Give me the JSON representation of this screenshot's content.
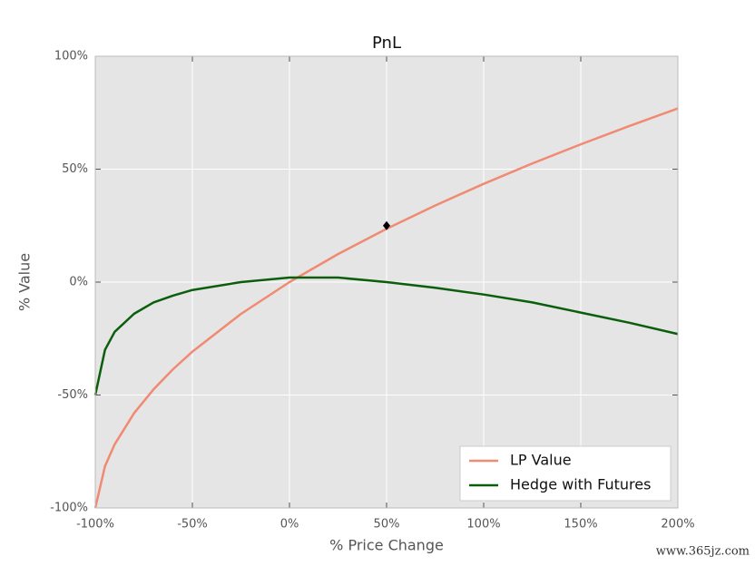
{
  "chart_data": {
    "type": "line",
    "title": "PnL",
    "x_label": "% Price Change",
    "y_label": "% Value",
    "x": [
      -100,
      -95,
      -90,
      -80,
      -70,
      -60,
      -50,
      -25,
      0,
      25,
      50,
      75,
      100,
      125,
      150,
      175,
      200
    ],
    "series": [
      {
        "name": "LP Value",
        "color": "#f08a72",
        "values": [
          -100,
          -81.5,
          -71.8,
          -58,
          -47.5,
          -38.6,
          -30.8,
          -14.1,
          0,
          12.4,
          23.6,
          33.9,
          43.5,
          52.5,
          61,
          69.1,
          76.9
        ]
      },
      {
        "name": "Hedge with Futures",
        "color": "#0b5e0b",
        "values": [
          -50,
          -30,
          -22,
          -14,
          -9,
          -6,
          -3.5,
          0,
          2,
          2,
          0,
          -2.5,
          -5.5,
          -9,
          -13.5,
          -18,
          -23
        ]
      }
    ],
    "marker": {
      "x": 50,
      "y": 25,
      "color": "#000000"
    },
    "xlim": [
      -100,
      200
    ],
    "ylim": [
      -100,
      100
    ],
    "xticks": [
      {
        "value": -100,
        "label": "-100%"
      },
      {
        "value": -50,
        "label": "-50%"
      },
      {
        "value": 0,
        "label": "0%"
      },
      {
        "value": 50,
        "label": "50%"
      },
      {
        "value": 100,
        "label": "100%"
      },
      {
        "value": 150,
        "label": "150%"
      },
      {
        "value": 200,
        "label": "200%"
      }
    ],
    "yticks": [
      {
        "value": -100,
        "label": "-100%"
      },
      {
        "value": -50,
        "label": "-50%"
      },
      {
        "value": 0,
        "label": "0%"
      },
      {
        "value": 50,
        "label": "50%"
      },
      {
        "value": 100,
        "label": "100%"
      }
    ],
    "grid": true,
    "legend": "lower right",
    "watermark": "www.365jz.com"
  }
}
